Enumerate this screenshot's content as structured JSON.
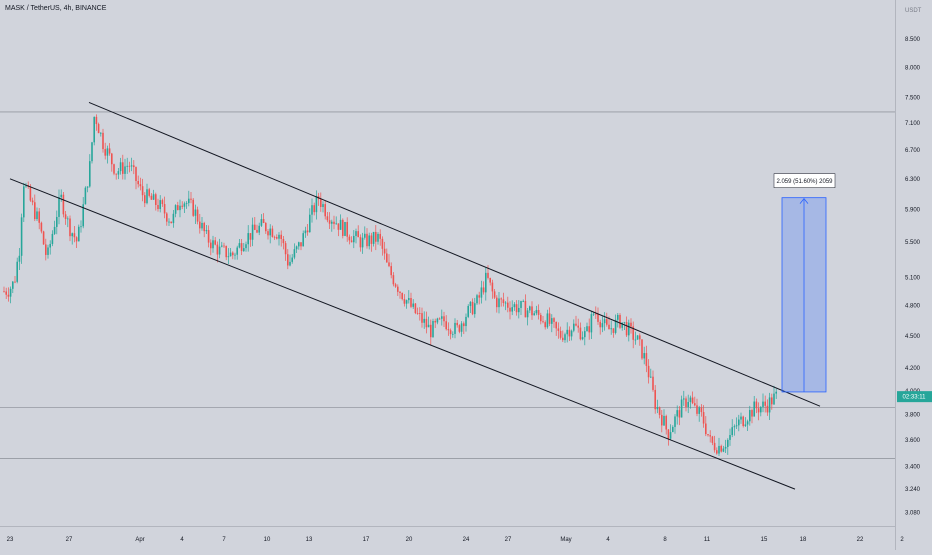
{
  "chart_data": {
    "type": "candlestick",
    "title": "MASK / TetherUS, 4h, BINANCE",
    "y_unit": "USDT",
    "y_scale": "log",
    "ylim": [
      3.0,
      9.0
    ],
    "y_ticks": [
      "8.500",
      "8.000",
      "7.500",
      "7.100",
      "6.700",
      "6.300",
      "5.900",
      "5.500",
      "5.100",
      "4.800",
      "4.500",
      "4.200",
      "4.000",
      "3.800",
      "3.600",
      "3.400",
      "3.240",
      "3.080"
    ],
    "x_ticks": [
      "23",
      "27",
      "Apr",
      "4",
      "7",
      "10",
      "13",
      "17",
      "20",
      "24",
      "27",
      "May",
      "4",
      "8",
      "11",
      "15",
      "18",
      "22",
      "2"
    ],
    "current_price_label": "02:33:11",
    "current_price": 3.95,
    "horizontal_levels": [
      7.27,
      3.86,
      3.46
    ],
    "channel": {
      "upper": {
        "from": [
          "Mar 28",
          7.42
        ],
        "to": [
          "May 18",
          3.87
        ]
      },
      "lower": {
        "from": [
          "Mar 23",
          6.3
        ],
        "to": [
          "May 18",
          3.24
        ]
      }
    },
    "measurement": {
      "label": "2.059 (51.60%) 2059",
      "from_price": 3.99,
      "to_price": 6.05,
      "from_date": "May 16",
      "to_date": "May 18"
    },
    "price_path": [
      [
        0,
        4.95
      ],
      [
        0.06,
        4.97
      ],
      [
        0.12,
        5.05
      ],
      [
        0.19,
        5.5
      ],
      [
        0.22,
        6.3
      ],
      [
        0.3,
        6.02
      ],
      [
        0.4,
        5.75
      ],
      [
        0.5,
        5.3
      ],
      [
        0.6,
        5.8
      ],
      [
        0.66,
        6.05
      ],
      [
        0.75,
        5.7
      ],
      [
        0.85,
        5.5
      ],
      [
        0.9,
        5.8
      ],
      [
        1.0,
        6.5
      ],
      [
        1.05,
        7.25
      ],
      [
        1.15,
        6.8
      ],
      [
        1.3,
        6.4
      ],
      [
        1.45,
        6.5
      ],
      [
        1.6,
        6.1
      ],
      [
        1.8,
        5.95
      ],
      [
        1.95,
        5.75
      ],
      [
        2.05,
        6.05
      ],
      [
        2.2,
        5.9
      ],
      [
        2.35,
        5.55
      ],
      [
        2.5,
        5.4
      ],
      [
        2.65,
        5.35
      ],
      [
        2.8,
        5.55
      ],
      [
        3.0,
        5.7
      ],
      [
        3.2,
        5.6
      ],
      [
        3.3,
        5.25
      ],
      [
        3.45,
        5.5
      ],
      [
        3.55,
        5.8
      ],
      [
        3.65,
        6.05
      ],
      [
        3.75,
        5.85
      ],
      [
        3.9,
        5.7
      ],
      [
        4.0,
        5.6
      ],
      [
        4.15,
        5.5
      ],
      [
        4.35,
        5.55
      ],
      [
        4.45,
        5.2
      ],
      [
        4.6,
        4.95
      ],
      [
        4.75,
        4.75
      ],
      [
        4.85,
        4.65
      ],
      [
        4.95,
        4.55
      ],
      [
        5.1,
        4.65
      ],
      [
        5.25,
        4.55
      ],
      [
        5.35,
        4.7
      ],
      [
        5.5,
        4.85
      ],
      [
        5.6,
        5.1
      ],
      [
        5.7,
        4.85
      ],
      [
        5.9,
        4.8
      ],
      [
        6.1,
        4.75
      ],
      [
        6.3,
        4.65
      ],
      [
        6.45,
        4.5
      ],
      [
        6.6,
        4.6
      ],
      [
        6.75,
        4.5
      ],
      [
        6.85,
        4.75
      ],
      [
        7.0,
        4.55
      ],
      [
        7.15,
        4.65
      ],
      [
        7.35,
        4.45
      ],
      [
        7.45,
        4.25
      ],
      [
        7.55,
        3.9
      ],
      [
        7.65,
        3.75
      ],
      [
        7.7,
        3.65
      ],
      [
        7.85,
        3.85
      ],
      [
        7.95,
        3.95
      ],
      [
        8.0,
        3.85
      ],
      [
        8.1,
        3.78
      ],
      [
        8.2,
        3.57
      ],
      [
        8.3,
        3.55
      ],
      [
        8.4,
        3.6
      ],
      [
        8.5,
        3.72
      ],
      [
        8.6,
        3.78
      ],
      [
        8.7,
        3.85
      ],
      [
        8.85,
        3.88
      ],
      [
        8.95,
        3.95
      ]
    ]
  }
}
